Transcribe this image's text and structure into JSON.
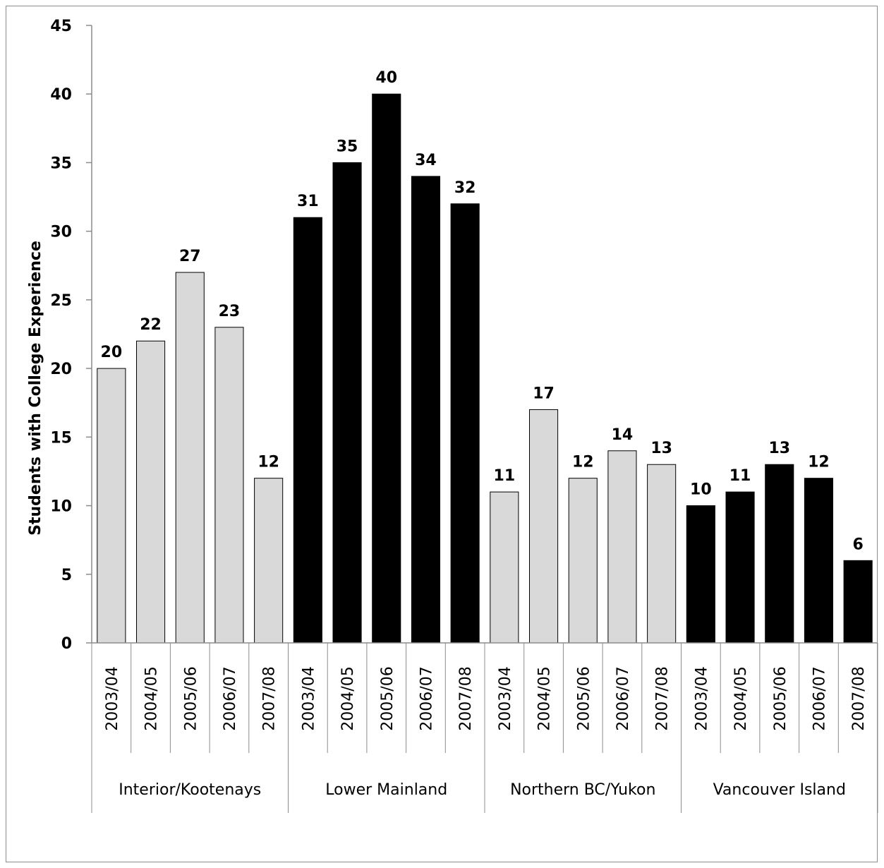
{
  "chart_data": {
    "type": "bar",
    "ylabel": "Students with College Experience",
    "ylim": [
      0,
      45
    ],
    "yticks": [
      "0",
      "5",
      "10",
      "15",
      "20",
      "25",
      "30",
      "35",
      "40",
      "45"
    ],
    "grid": false,
    "legend": "none",
    "groups": [
      {
        "name": "Interior/Kootenays",
        "color": "#d9d9d9",
        "categories": [
          "2003/04",
          "2004/05",
          "2005/06",
          "2006/07",
          "2007/08"
        ],
        "values": [
          20,
          22,
          27,
          23,
          12
        ]
      },
      {
        "name": "Lower Mainland",
        "color": "#000000",
        "categories": [
          "2003/04",
          "2004/05",
          "2005/06",
          "2006/07",
          "2007/08"
        ],
        "values": [
          31,
          35,
          40,
          34,
          32
        ]
      },
      {
        "name": "Northern BC/Yukon",
        "color": "#d9d9d9",
        "categories": [
          "2003/04",
          "2004/05",
          "2005/06",
          "2006/07",
          "2007/08"
        ],
        "values": [
          11,
          17,
          12,
          14,
          13
        ]
      },
      {
        "name": "Vancouver Island",
        "color": "#000000",
        "categories": [
          "2003/04",
          "2004/05",
          "2005/06",
          "2006/07",
          "2007/08"
        ],
        "values": [
          10,
          11,
          13,
          12,
          6
        ]
      }
    ]
  }
}
